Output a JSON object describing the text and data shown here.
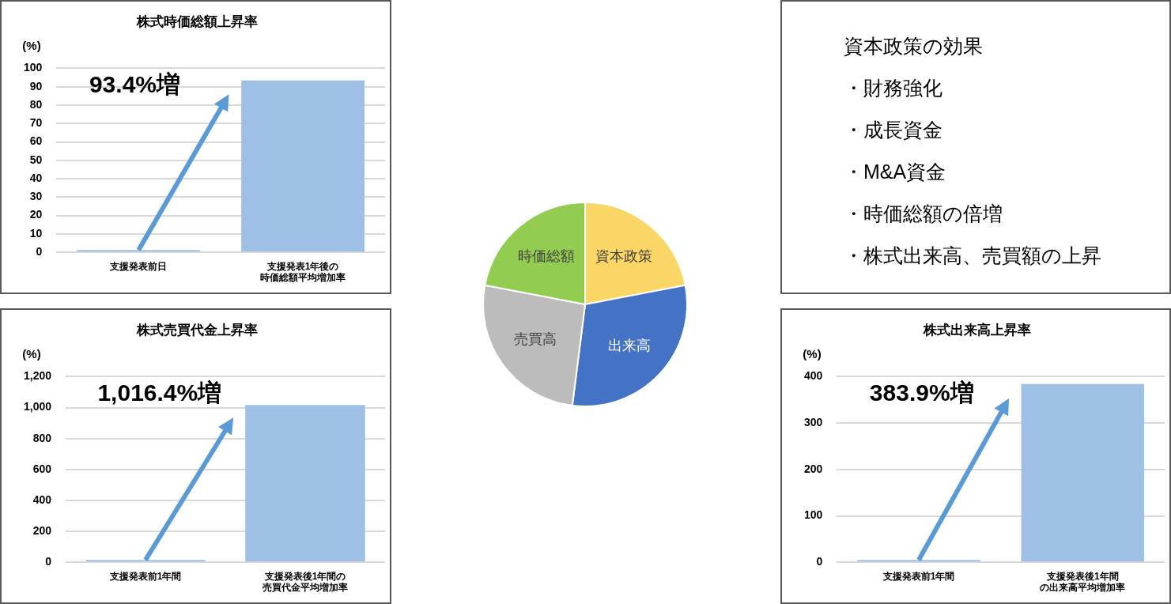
{
  "chart_data": [
    {
      "type": "bar",
      "title": "株式時価総額上昇率",
      "ylabel": "(%)",
      "categories": [
        "支援発表前日",
        "支援発表1年後の時価総額平均増加率"
      ],
      "values": [
        1.3,
        93.4
      ],
      "color": "#9fc0e5",
      "ylim": [
        0,
        100
      ],
      "yticks": [
        0,
        10,
        20,
        30,
        40,
        50,
        60,
        70,
        80,
        90,
        100
      ],
      "grid": "y",
      "annotations": [
        "93.4%増"
      ]
    },
    {
      "type": "pie",
      "categories": [
        "資本政策",
        "出来高",
        "売買高",
        "時価総額"
      ],
      "values": [
        22,
        30,
        26,
        22
      ],
      "colors": [
        "#fad666",
        "#4472c4",
        "#bcbcbc",
        "#92cc50"
      ]
    },
    {
      "type": "other",
      "title": "資本政策の効果",
      "annotations": [
        "・財務強化",
        "・成長資金",
        "・M&A資金",
        "・時価総額の倍増",
        "・株式出来高、売買額の上昇"
      ]
    },
    {
      "type": "bar",
      "title": "株式売買代金上昇率",
      "ylabel": "(%)",
      "categories": [
        "支援発表前1年間",
        "支援発表後1年間の売買代金平均増加率"
      ],
      "values": [
        15,
        1016.4
      ],
      "color": "#9fc0e5",
      "ylim": [
        0,
        1200
      ],
      "yticks": [
        0,
        200,
        400,
        600,
        800,
        {
          "value": 1000,
          "label": "1,000"
        },
        {
          "value": 1200,
          "label": "1,200"
        }
      ],
      "grid": "y",
      "annotations": [
        "1,016.4%増"
      ]
    },
    {
      "type": "bar",
      "title": "株式出来高上昇率",
      "ylabel": "(%)",
      "categories": [
        "支援発表前1年間",
        "支援発表後1年間の出来高平均増加率"
      ],
      "values": [
        5,
        383.9
      ],
      "color": "#9fc0e5",
      "ylim": [
        0,
        400
      ],
      "yticks": [
        0,
        100,
        200,
        300,
        400
      ],
      "grid": "y",
      "annotations": [
        "383.9%増"
      ]
    }
  ]
}
